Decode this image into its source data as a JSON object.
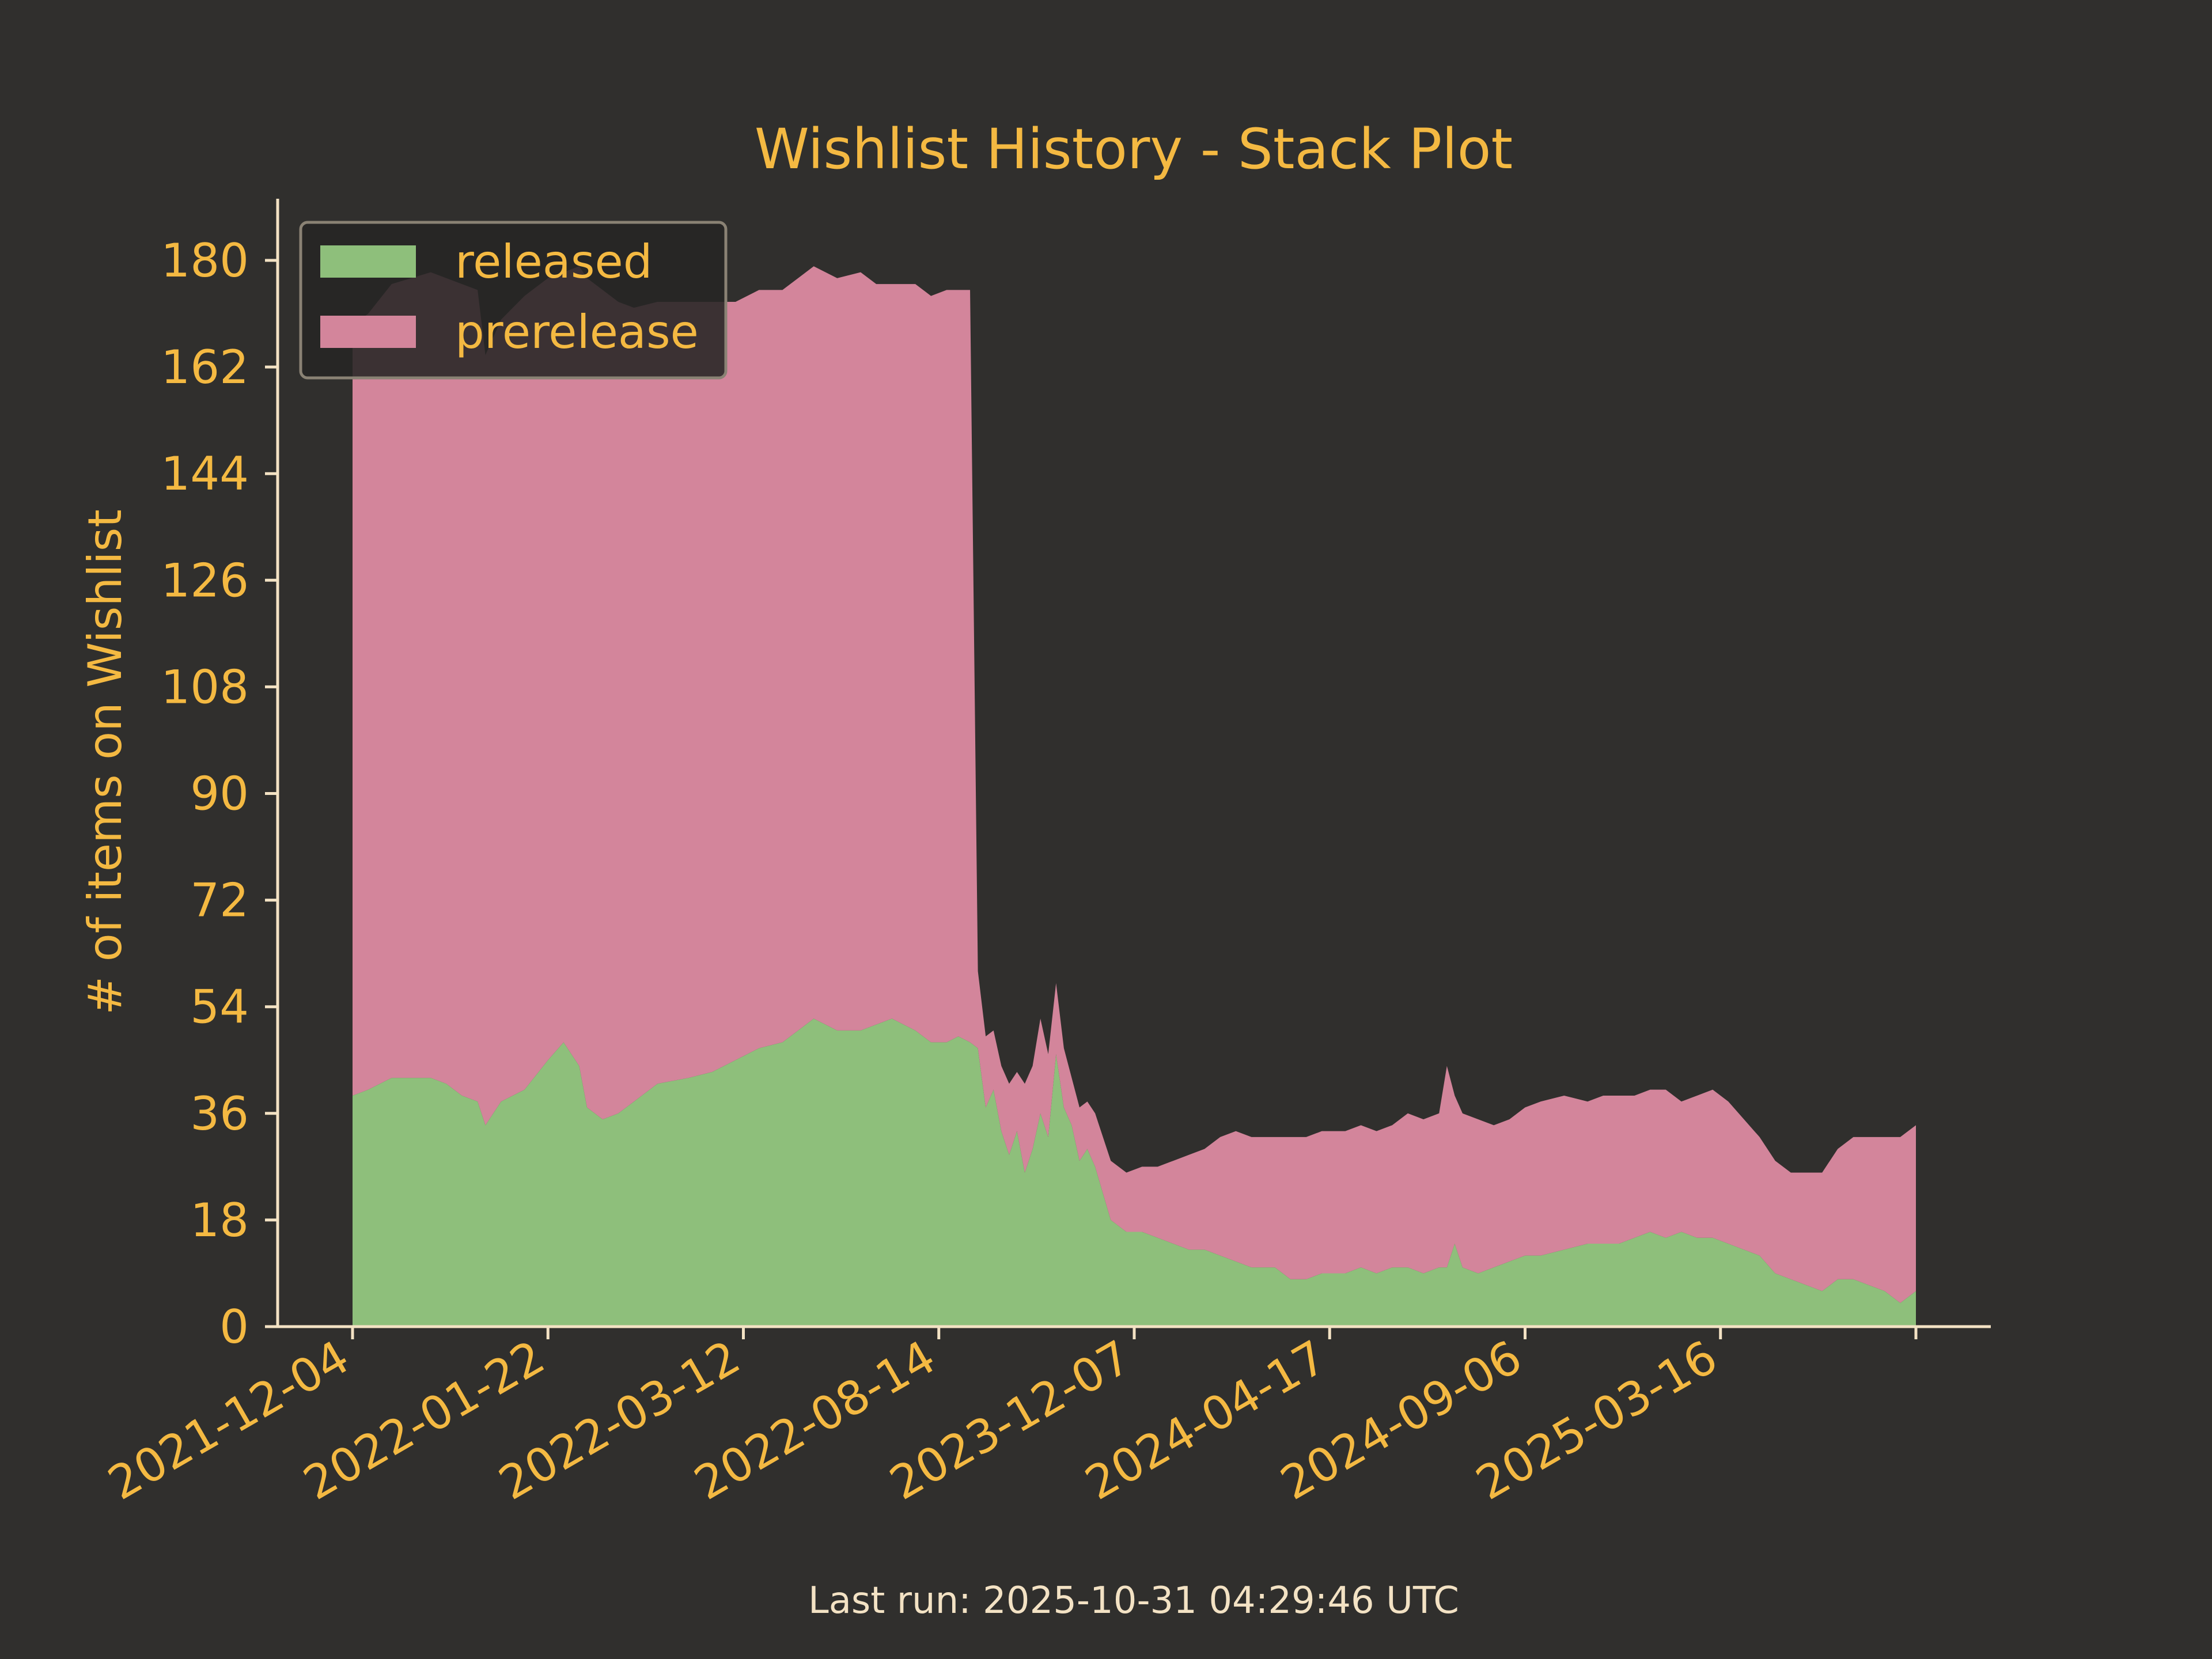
{
  "chart_data": {
    "type": "area",
    "title": "Wishlist History - Stack Plot",
    "xlabel": "",
    "ylabel": "# of items on Wishlist",
    "ylim": [
      0,
      189
    ],
    "yticks": [
      0,
      18,
      36,
      54,
      72,
      90,
      108,
      126,
      144,
      162,
      180
    ],
    "x_tick_labels": [
      "2021-12-04",
      "2022-01-22",
      "2022-03-12",
      "2022-08-14",
      "2023-12-07",
      "2024-04-17",
      "2024-09-06",
      "2025-03-16"
    ],
    "x_index_range": [
      0,
      400
    ],
    "legend_position": "top-left",
    "grid": false,
    "colors": {
      "background": "#302f2d",
      "axes": "#f3e2c4",
      "text": "#f4b942",
      "released": "#8ebf7b",
      "prerelease": "#d3859b",
      "legend_bg": "#262624",
      "legend_border": "#8a8274"
    },
    "series": [
      {
        "name": "released",
        "points": [
          [
            0,
            39
          ],
          [
            4,
            40
          ],
          [
            10,
            42
          ],
          [
            20,
            42
          ],
          [
            24,
            41
          ],
          [
            28,
            39
          ],
          [
            32,
            38
          ],
          [
            34,
            34
          ],
          [
            38,
            38
          ],
          [
            44,
            40
          ],
          [
            50,
            45
          ],
          [
            54,
            48
          ],
          [
            58,
            44
          ],
          [
            60,
            37
          ],
          [
            64,
            35
          ],
          [
            68,
            36
          ],
          [
            72,
            38
          ],
          [
            78,
            41
          ],
          [
            86,
            42
          ],
          [
            92,
            43
          ],
          [
            98,
            45
          ],
          [
            104,
            47
          ],
          [
            110,
            48
          ],
          [
            114,
            50
          ],
          [
            118,
            52
          ],
          [
            124,
            50
          ],
          [
            130,
            50
          ],
          [
            134,
            51
          ],
          [
            138,
            52
          ],
          [
            144,
            50
          ],
          [
            148,
            48
          ],
          [
            152,
            48
          ],
          [
            155,
            49
          ],
          [
            158,
            48
          ],
          [
            160,
            47
          ],
          [
            162,
            37
          ],
          [
            164,
            40
          ],
          [
            166,
            33
          ],
          [
            168,
            29
          ],
          [
            170,
            33
          ],
          [
            172,
            26
          ],
          [
            174,
            30
          ],
          [
            176,
            36
          ],
          [
            178,
            32
          ],
          [
            180,
            46
          ],
          [
            182,
            37
          ],
          [
            184,
            34
          ],
          [
            186,
            28
          ],
          [
            188,
            30
          ],
          [
            190,
            27
          ],
          [
            194,
            18
          ],
          [
            198,
            16
          ],
          [
            202,
            16
          ],
          [
            206,
            15
          ],
          [
            210,
            14
          ],
          [
            214,
            13
          ],
          [
            218,
            13
          ],
          [
            222,
            12
          ],
          [
            226,
            11
          ],
          [
            230,
            10
          ],
          [
            236,
            10
          ],
          [
            240,
            8
          ],
          [
            244,
            8
          ],
          [
            248,
            9
          ],
          [
            254,
            9
          ],
          [
            258,
            10
          ],
          [
            262,
            9
          ],
          [
            266,
            10
          ],
          [
            270,
            10
          ],
          [
            274,
            9
          ],
          [
            278,
            10
          ],
          [
            280,
            10
          ],
          [
            282,
            14
          ],
          [
            284,
            10
          ],
          [
            288,
            9
          ],
          [
            292,
            10
          ],
          [
            296,
            11
          ],
          [
            300,
            12
          ],
          [
            304,
            12
          ],
          [
            310,
            13
          ],
          [
            316,
            14
          ],
          [
            320,
            14
          ],
          [
            324,
            14
          ],
          [
            328,
            15
          ],
          [
            332,
            16
          ],
          [
            336,
            15
          ],
          [
            340,
            16
          ],
          [
            344,
            15
          ],
          [
            348,
            15
          ],
          [
            352,
            14
          ],
          [
            356,
            13
          ],
          [
            360,
            12
          ],
          [
            364,
            9
          ],
          [
            368,
            8
          ],
          [
            372,
            7
          ],
          [
            376,
            6
          ],
          [
            380,
            8
          ],
          [
            384,
            8
          ],
          [
            388,
            7
          ],
          [
            392,
            6
          ],
          [
            396,
            4
          ],
          [
            398,
            5
          ],
          [
            400,
            6
          ]
        ]
      },
      {
        "name": "prerelease",
        "points": [
          [
            0,
            130
          ],
          [
            4,
            131
          ],
          [
            10,
            134
          ],
          [
            20,
            136
          ],
          [
            24,
            136
          ],
          [
            28,
            137
          ],
          [
            32,
            137
          ],
          [
            34,
            130
          ],
          [
            38,
            132
          ],
          [
            44,
            134
          ],
          [
            50,
            132
          ],
          [
            54,
            130
          ],
          [
            58,
            135
          ],
          [
            60,
            140
          ],
          [
            64,
            140
          ],
          [
            68,
            137
          ],
          [
            72,
            134
          ],
          [
            78,
            132
          ],
          [
            86,
            131
          ],
          [
            92,
            130
          ],
          [
            98,
            128
          ],
          [
            104,
            128
          ],
          [
            110,
            127
          ],
          [
            114,
            127
          ],
          [
            118,
            127
          ],
          [
            124,
            127
          ],
          [
            130,
            128
          ],
          [
            134,
            125
          ],
          [
            138,
            124
          ],
          [
            144,
            126
          ],
          [
            148,
            126
          ],
          [
            152,
            127
          ],
          [
            155,
            126
          ],
          [
            158,
            127
          ],
          [
            160,
            13
          ],
          [
            162,
            12
          ],
          [
            164,
            10
          ],
          [
            166,
            11
          ],
          [
            168,
            12
          ],
          [
            170,
            10
          ],
          [
            172,
            15
          ],
          [
            174,
            14
          ],
          [
            176,
            16
          ],
          [
            178,
            14
          ],
          [
            180,
            12
          ],
          [
            182,
            10
          ],
          [
            184,
            8
          ],
          [
            186,
            9
          ],
          [
            188,
            8
          ],
          [
            190,
            9
          ],
          [
            194,
            10
          ],
          [
            198,
            10
          ],
          [
            202,
            11
          ],
          [
            206,
            12
          ],
          [
            210,
            14
          ],
          [
            214,
            16
          ],
          [
            218,
            17
          ],
          [
            222,
            20
          ],
          [
            226,
            22
          ],
          [
            230,
            22
          ],
          [
            236,
            22
          ],
          [
            240,
            24
          ],
          [
            244,
            24
          ],
          [
            248,
            24
          ],
          [
            254,
            24
          ],
          [
            258,
            24
          ],
          [
            262,
            24
          ],
          [
            266,
            24
          ],
          [
            270,
            26
          ],
          [
            274,
            26
          ],
          [
            278,
            26
          ],
          [
            280,
            34
          ],
          [
            282,
            25
          ],
          [
            284,
            26
          ],
          [
            288,
            26
          ],
          [
            292,
            24
          ],
          [
            296,
            24
          ],
          [
            300,
            25
          ],
          [
            304,
            26
          ],
          [
            310,
            26
          ],
          [
            316,
            24
          ],
          [
            320,
            25
          ],
          [
            324,
            25
          ],
          [
            328,
            24
          ],
          [
            332,
            24
          ],
          [
            336,
            25
          ],
          [
            340,
            22
          ],
          [
            344,
            24
          ],
          [
            348,
            25
          ],
          [
            352,
            24
          ],
          [
            356,
            22
          ],
          [
            360,
            20
          ],
          [
            364,
            19
          ],
          [
            368,
            18
          ],
          [
            372,
            19
          ],
          [
            376,
            20
          ],
          [
            380,
            22
          ],
          [
            384,
            24
          ],
          [
            388,
            25
          ],
          [
            392,
            26
          ],
          [
            396,
            28
          ],
          [
            398,
            28
          ],
          [
            400,
            28
          ]
        ]
      }
    ]
  },
  "footer": {
    "last_run": "Last run: 2025-10-31 04:29:46 UTC"
  }
}
